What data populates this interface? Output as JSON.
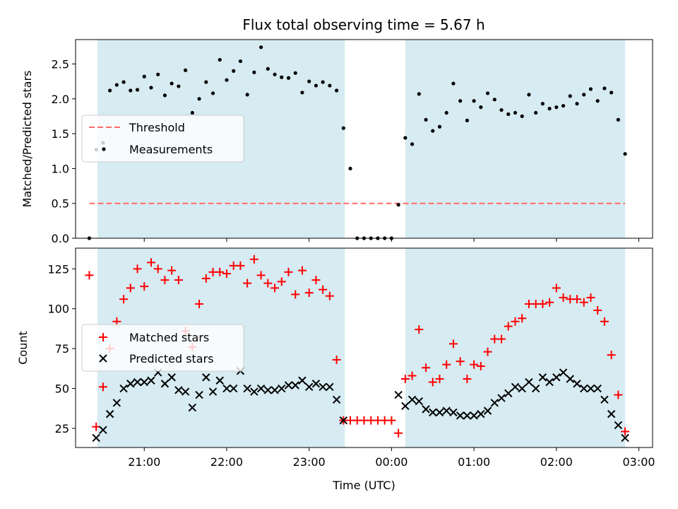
{
  "chart_data": [
    {
      "type": "scatter",
      "title": "Flux total observing time = 5.67 h",
      "xlabel": "",
      "ylabel": "Matched/Predicted stars",
      "ylim": [
        0,
        2.85
      ],
      "x_range": [
        "20:10",
        "03:10"
      ],
      "yticks": [
        "0.0",
        "0.5",
        "1.0",
        "1.5",
        "2.0",
        "2.5"
      ],
      "grid": false,
      "legend_location": "center-left",
      "shaded_regions": [
        [
          "20:26",
          "23:26"
        ],
        [
          "00:10",
          "02:50"
        ]
      ],
      "shade_color": "#add8e6",
      "threshold": {
        "name": "Threshold",
        "value": 0.5,
        "x_from": "20:20",
        "x_to": "02:50",
        "color": "#ff6b6b",
        "style": "dashed"
      },
      "series": [
        {
          "name": "Measurements",
          "color": "#000000",
          "marker": "dot",
          "x": [
            "20:20",
            "20:25",
            "20:30",
            "20:35",
            "20:40",
            "20:45",
            "20:50",
            "20:55",
            "21:00",
            "21:05",
            "21:10",
            "21:15",
            "21:20",
            "21:25",
            "21:30",
            "21:35",
            "21:40",
            "21:45",
            "21:50",
            "21:55",
            "22:00",
            "22:05",
            "22:10",
            "22:15",
            "22:20",
            "22:25",
            "22:30",
            "22:35",
            "22:40",
            "22:45",
            "22:50",
            "22:55",
            "23:00",
            "23:05",
            "23:10",
            "23:15",
            "23:20",
            "23:25",
            "23:30",
            "23:35",
            "23:40",
            "23:45",
            "23:50",
            "23:55",
            "00:00",
            "00:05",
            "00:10",
            "00:15",
            "00:20",
            "00:25",
            "00:30",
            "00:35",
            "00:40",
            "00:45",
            "00:50",
            "00:55",
            "01:00",
            "01:05",
            "01:10",
            "01:15",
            "01:20",
            "01:25",
            "01:30",
            "01:35",
            "01:40",
            "01:45",
            "01:50",
            "01:55",
            "02:00",
            "02:05",
            "02:10",
            "02:15",
            "02:20",
            "02:25",
            "02:30",
            "02:35",
            "02:40",
            "02:45",
            "02:50"
          ],
          "y": [
            0.0,
            1.27,
            1.37,
            2.12,
            2.2,
            2.24,
            2.12,
            2.13,
            2.32,
            2.16,
            2.35,
            2.05,
            2.22,
            2.18,
            2.41,
            1.8,
            2.0,
            2.24,
            2.08,
            2.56,
            2.27,
            2.4,
            2.54,
            2.06,
            2.38,
            2.74,
            2.43,
            2.35,
            2.31,
            2.3,
            2.37,
            2.09,
            2.25,
            2.19,
            2.24,
            2.19,
            2.12,
            1.58,
            1.0,
            0.0,
            0.0,
            0.0,
            0.0,
            0.0,
            0.0,
            0.48,
            1.44,
            1.35,
            2.07,
            1.7,
            1.54,
            1.6,
            1.8,
            2.22,
            1.97,
            1.69,
            1.97,
            1.88,
            2.08,
            1.99,
            1.84,
            1.78,
            1.8,
            1.75,
            2.06,
            1.8,
            1.93,
            1.86,
            1.88,
            1.9,
            2.04,
            1.93,
            2.06,
            2.14,
            1.97,
            2.15,
            2.09,
            1.7,
            1.21
          ]
        }
      ]
    },
    {
      "type": "scatter",
      "title": "",
      "xlabel": "Time (UTC)",
      "ylabel": "Count",
      "ylim": [
        13,
        138
      ],
      "x_range": [
        "20:10",
        "03:10"
      ],
      "xticks": [
        "21:00",
        "22:00",
        "23:00",
        "00:00",
        "01:00",
        "02:00",
        "03:00"
      ],
      "yticks": [
        "25",
        "50",
        "75",
        "100",
        "125"
      ],
      "grid": false,
      "legend_location": "center-left",
      "shaded_regions": [
        [
          "20:26",
          "23:26"
        ],
        [
          "00:10",
          "02:50"
        ]
      ],
      "shade_color": "#add8e6",
      "series": [
        {
          "name": "Matched stars",
          "color": "#ff0000",
          "marker": "plus",
          "x": [
            "20:20",
            "20:25",
            "20:30",
            "20:35",
            "20:40",
            "20:45",
            "20:50",
            "20:55",
            "21:00",
            "21:05",
            "21:10",
            "21:15",
            "21:20",
            "21:25",
            "21:30",
            "21:35",
            "21:40",
            "21:45",
            "21:50",
            "21:55",
            "22:00",
            "22:05",
            "22:10",
            "22:15",
            "22:20",
            "22:25",
            "22:30",
            "22:35",
            "22:40",
            "22:45",
            "22:50",
            "22:55",
            "23:00",
            "23:05",
            "23:10",
            "23:15",
            "23:20",
            "23:25",
            "23:30",
            "23:35",
            "23:40",
            "23:45",
            "23:50",
            "23:55",
            "00:00",
            "00:05",
            "00:10",
            "00:15",
            "00:20",
            "00:25",
            "00:30",
            "00:35",
            "00:40",
            "00:45",
            "00:50",
            "00:55",
            "01:00",
            "01:05",
            "01:10",
            "01:15",
            "01:20",
            "01:25",
            "01:30",
            "01:35",
            "01:40",
            "01:45",
            "01:50",
            "01:55",
            "02:00",
            "02:05",
            "02:10",
            "02:15",
            "02:20",
            "02:25",
            "02:30",
            "02:35",
            "02:40",
            "02:45",
            "02:50"
          ],
          "y": [
            121,
            26,
            51,
            75,
            92,
            106,
            113,
            125,
            114,
            129,
            125,
            118,
            124,
            118,
            86,
            76,
            103,
            119,
            123,
            123,
            122,
            127,
            127,
            116,
            131,
            121,
            116,
            113,
            117,
            123,
            109,
            124,
            110,
            118,
            112,
            108,
            68,
            30,
            30,
            30,
            30,
            30,
            30,
            30,
            30,
            22,
            56,
            58,
            87,
            63,
            54,
            56,
            65,
            78,
            67,
            56,
            65,
            64,
            73,
            81,
            81,
            89,
            92,
            94,
            103,
            103,
            103,
            104,
            113,
            107,
            106,
            106,
            104,
            107,
            99,
            92,
            71,
            46,
            23
          ]
        },
        {
          "name": "Predicted stars",
          "color": "#000000",
          "marker": "x",
          "x": [
            "20:25",
            "20:30",
            "20:35",
            "20:40",
            "20:45",
            "20:50",
            "20:55",
            "21:00",
            "21:05",
            "21:10",
            "21:15",
            "21:20",
            "21:25",
            "21:30",
            "21:35",
            "21:40",
            "21:45",
            "21:50",
            "21:55",
            "22:00",
            "22:05",
            "22:10",
            "22:15",
            "22:20",
            "22:25",
            "22:30",
            "22:35",
            "22:40",
            "22:45",
            "22:50",
            "22:55",
            "23:00",
            "23:05",
            "23:10",
            "23:15",
            "23:20",
            "23:25",
            "00:05",
            "00:10",
            "00:15",
            "00:20",
            "00:25",
            "00:30",
            "00:35",
            "00:40",
            "00:45",
            "00:50",
            "00:55",
            "01:00",
            "01:05",
            "01:10",
            "01:15",
            "01:20",
            "01:25",
            "01:30",
            "01:35",
            "01:40",
            "01:45",
            "01:50",
            "01:55",
            "02:00",
            "02:05",
            "02:10",
            "02:15",
            "02:20",
            "02:25",
            "02:30",
            "02:35",
            "02:40",
            "02:45",
            "02:50"
          ],
          "y": [
            19,
            24,
            34,
            41,
            50,
            53,
            54,
            54,
            55,
            60,
            53,
            57,
            49,
            48,
            38,
            46,
            57,
            48,
            55,
            50,
            50,
            61,
            50,
            48,
            50,
            49,
            49,
            50,
            52,
            52,
            55,
            51,
            53,
            51,
            51,
            43,
            30,
            46,
            39,
            43,
            42,
            37,
            35,
            35,
            36,
            35,
            33,
            33,
            33,
            34,
            36,
            41,
            44,
            47,
            51,
            50,
            54,
            50,
            57,
            54,
            57,
            60,
            56,
            53,
            50,
            50,
            50,
            43,
            34,
            27,
            19
          ]
        }
      ]
    }
  ]
}
